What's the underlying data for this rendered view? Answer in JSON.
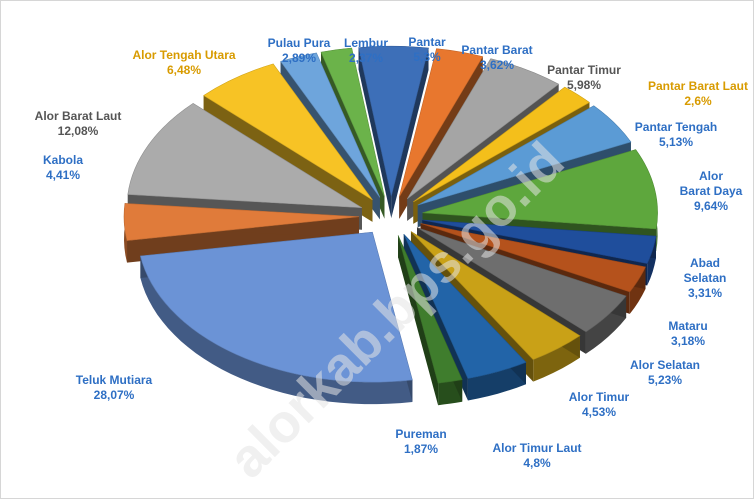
{
  "chart_data": {
    "type": "pie",
    "title": "",
    "slices": [
      {
        "name": "Pantar",
        "value": 5.3,
        "label": "5,3%",
        "color": "#3d6fb8"
      },
      {
        "name": "Pantar Barat",
        "value": 3.62,
        "label": "3,62%",
        "color": "#e8772e"
      },
      {
        "name": "Pantar Timur",
        "value": 5.98,
        "label": "5,98%",
        "color": "#a5a5a5"
      },
      {
        "name": "Pantar Barat Laut",
        "value": 2.6,
        "label": "2,6%",
        "color": "#f4bf1b"
      },
      {
        "name": "Pantar Tengah",
        "value": 5.13,
        "label": "5,13%",
        "color": "#5b9bd5"
      },
      {
        "name": "Alor Barat Daya",
        "value": 9.64,
        "label": "9,64%",
        "color": "#5ea73d"
      },
      {
        "name": "Abad Selatan",
        "value": 3.31,
        "label": "3,31%",
        "color": "#1f4e9c"
      },
      {
        "name": "Mataru",
        "value": 3.18,
        "label": "3,18%",
        "color": "#b5521c"
      },
      {
        "name": "Alor Selatan",
        "value": 5.23,
        "label": "5,23%",
        "color": "#6e6e6e"
      },
      {
        "name": "Alor Timur",
        "value": 4.53,
        "label": "4,53%",
        "color": "#c9a117"
      },
      {
        "name": "Alor Timur Laut",
        "value": 4.8,
        "label": "4,8%",
        "color": "#2264a8"
      },
      {
        "name": "Pureman",
        "value": 1.87,
        "label": "1,87%",
        "color": "#3f7d2d"
      },
      {
        "name": "Teluk Mutiara",
        "value": 28.07,
        "label": "28,07%",
        "color": "#6b93d6"
      },
      {
        "name": "Kabola",
        "value": 4.41,
        "label": "4,41%",
        "color": "#e07b3a"
      },
      {
        "name": "Alor Barat Laut",
        "value": 12.08,
        "label": "12,08%",
        "color": "#ababab"
      },
      {
        "name": "Alor Tengah Utara",
        "value": 6.48,
        "label": "6,48%",
        "color": "#f7c325"
      },
      {
        "name": "Pulau Pura",
        "value": 2.89,
        "label": "2,89%",
        "color": "#6ea5dc"
      },
      {
        "name": "Lembur",
        "value": 2.37,
        "label": "2,37%",
        "color": "#6bb34a"
      }
    ],
    "label_colors": {
      "blue": "#2e6fc4",
      "gray": "#555555",
      "gold": "#d89b00"
    },
    "legend": "none"
  },
  "watermark": "alorkab.bps.go.id"
}
